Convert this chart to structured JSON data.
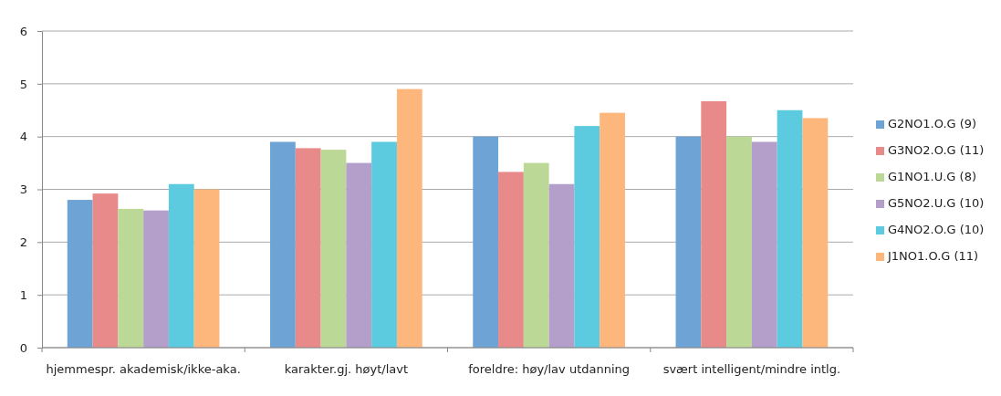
{
  "chart_data": {
    "type": "bar",
    "categories": [
      "hjemmespr. akademisk/ikke-aka.",
      "karakter.gj. høyt/lavt",
      "foreldre: høy/lav utdanning",
      "svært intelligent/mindre intlg."
    ],
    "series": [
      {
        "name": "G2NO1.O.G (9)",
        "color": "#6ea3d6",
        "values": [
          2.8,
          3.9,
          4.0,
          4.0
        ]
      },
      {
        "name": "G3NO2.O.G (11)",
        "color": "#e8898a",
        "values": [
          2.92,
          3.78,
          3.33,
          4.67
        ]
      },
      {
        "name": "G1NO1.U.G (8)",
        "color": "#bcd896",
        "values": [
          2.63,
          3.75,
          3.5,
          4.0
        ]
      },
      {
        "name": "G5NO2.U.G (10)",
        "color": "#b49fcb",
        "values": [
          2.6,
          3.5,
          3.1,
          3.9
        ]
      },
      {
        "name": "G4NO2.O.G (10)",
        "color": "#5ccbe0",
        "values": [
          3.1,
          3.9,
          4.2,
          4.5
        ]
      },
      {
        "name": "J1NO1.O.G (11)",
        "color": "#fdb67c",
        "values": [
          3.0,
          4.9,
          4.45,
          4.35
        ]
      }
    ],
    "ylim": [
      0,
      6
    ],
    "yticks": [
      0,
      1,
      2,
      3,
      4,
      5,
      6
    ],
    "grid": "y",
    "legend": "right"
  }
}
